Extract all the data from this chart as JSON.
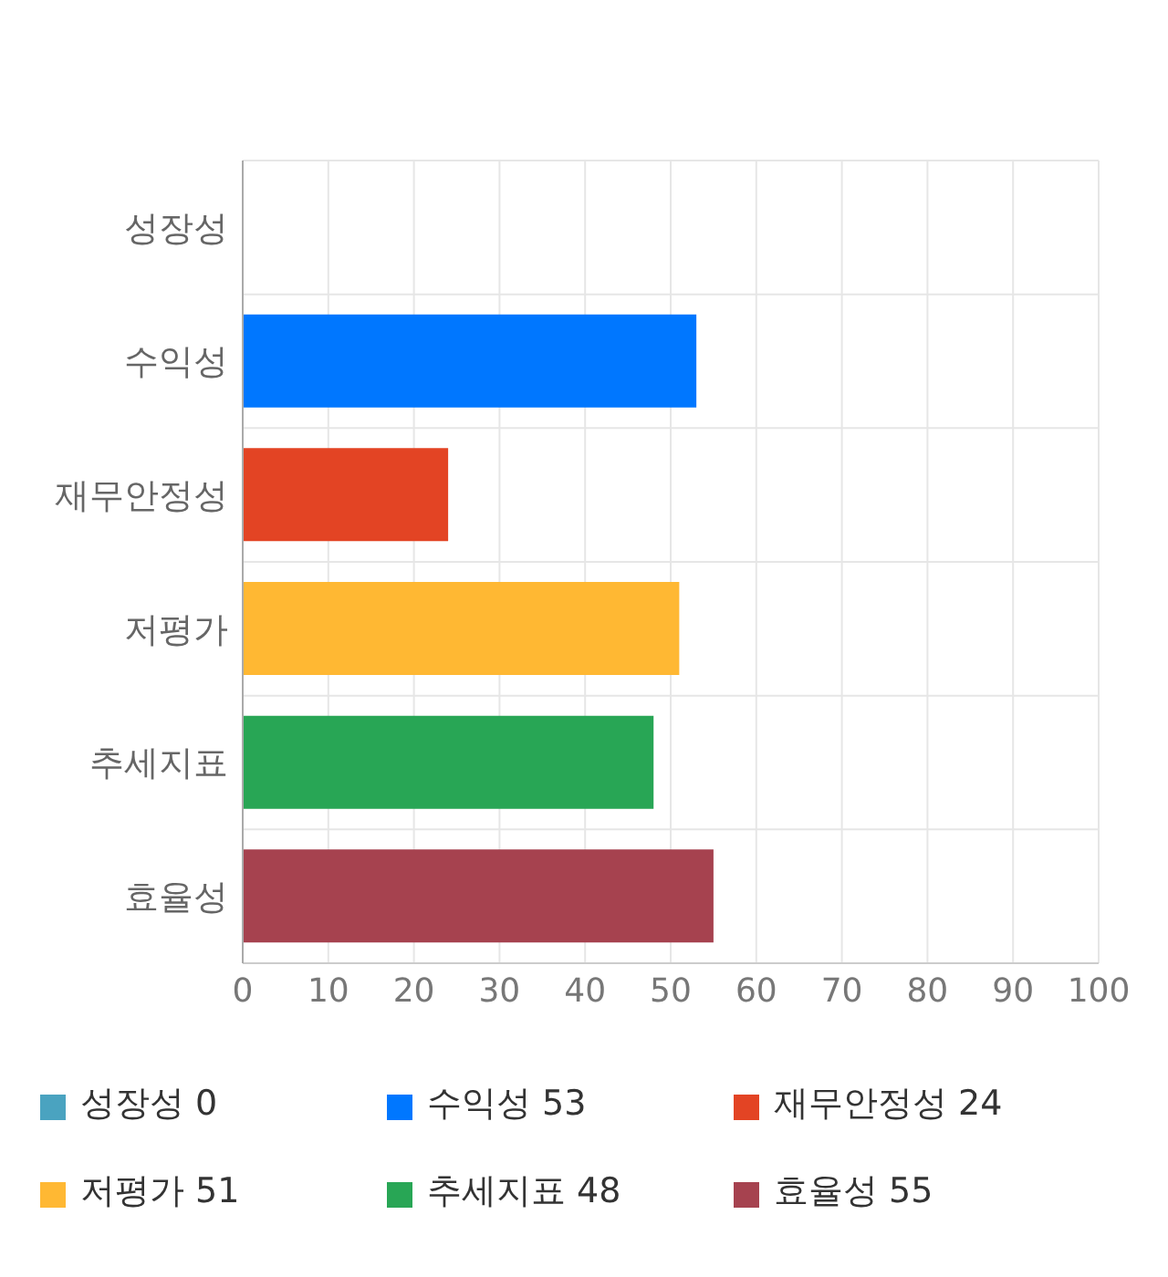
{
  "chart_data": {
    "type": "bar",
    "orientation": "horizontal",
    "stacked": true,
    "categories": [
      "성장성",
      "수익성",
      "재무안정성",
      "저평가",
      "추세지표",
      "효율성"
    ],
    "series": [
      {
        "name": "성장성 0",
        "color": "#4aa3c0",
        "values": [
          0,
          null,
          null,
          null,
          null,
          null
        ]
      },
      {
        "name": "수익성 53",
        "color": "#0077ff",
        "values": [
          null,
          53,
          null,
          null,
          null,
          null
        ]
      },
      {
        "name": "재무안정성 24",
        "color": "#e34424",
        "values": [
          null,
          null,
          24,
          null,
          null,
          null
        ]
      },
      {
        "name": "저평가 51",
        "color": "#ffb833",
        "values": [
          null,
          null,
          null,
          51,
          null,
          null
        ]
      },
      {
        "name": "추세지표 48",
        "color": "#28a655",
        "values": [
          null,
          null,
          null,
          null,
          48,
          null
        ]
      },
      {
        "name": "효율성 55",
        "color": "#a6424f",
        "values": [
          null,
          null,
          null,
          null,
          null,
          55
        ]
      }
    ],
    "xlim": [
      0,
      100
    ],
    "xticks": [
      0,
      10,
      20,
      30,
      40,
      50,
      60,
      70,
      80,
      90,
      100
    ],
    "grid": true,
    "legend": "bottom"
  }
}
